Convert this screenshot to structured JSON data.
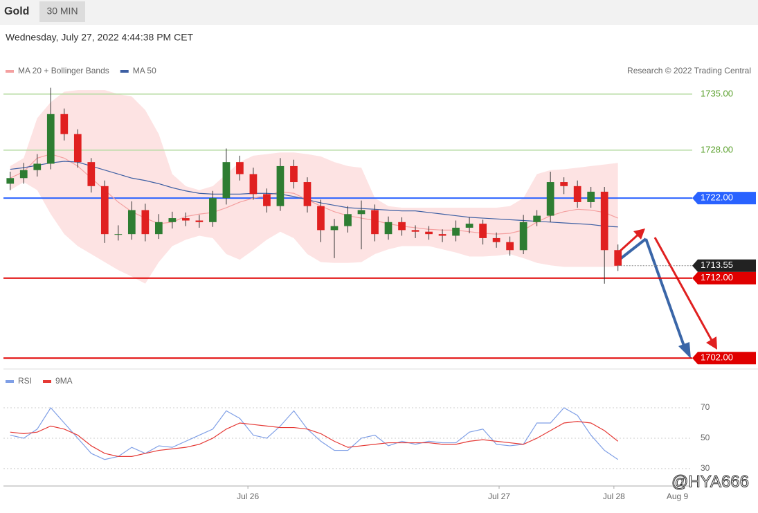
{
  "header": {
    "symbol": "Gold",
    "interval": "30 MIN",
    "date": "Wednesday, July 27, 2022 4:44:38 PM CET",
    "credit": "Research © 2022 Trading Central",
    "watermark": "@HYA666"
  },
  "chart_data": [
    {
      "type": "candlestick",
      "open": [
        1723.8,
        1724.5,
        1725.5,
        1726.3,
        1732.5,
        1730,
        1726.5,
        1723.5,
        1717.5,
        1717.5,
        1720.5,
        1717.5,
        1719,
        1719.5,
        1719.2,
        1719,
        1722,
        1726.5,
        1725,
        1722.5,
        1721,
        1726,
        1724,
        1721,
        1718,
        1718.5,
        1720,
        1720.5,
        1717.5,
        1719,
        1718,
        1717.8,
        1717.5,
        1717.3,
        1718.3,
        1718.8,
        1717,
        1716.5,
        1715.5,
        1719,
        1719.8,
        1724,
        1723.5,
        1721.5,
        1722.8,
        1715.5
      ],
      "high": [
        1725.3,
        1726.4,
        1727.5,
        1735.8,
        1733.2,
        1730.6,
        1727,
        1724.2,
        1718.6,
        1721.6,
        1721.3,
        1720,
        1720.3,
        1720.2,
        1719.9,
        1722.9,
        1728.2,
        1727.3,
        1725.8,
        1723.2,
        1727,
        1726.8,
        1724.6,
        1721.8,
        1719.4,
        1721,
        1721.7,
        1721.2,
        1719.7,
        1719.6,
        1718.6,
        1718.5,
        1718.1,
        1719.2,
        1719.6,
        1719.3,
        1717.7,
        1717.2,
        1719.9,
        1720.5,
        1725.3,
        1724.6,
        1724.2,
        1723.4,
        1723.4,
        1716.2
      ],
      "low": [
        1723,
        1723.8,
        1724.7,
        1725.6,
        1729.2,
        1725.8,
        1722.7,
        1716.4,
        1716.7,
        1716.8,
        1716.6,
        1716.9,
        1718.2,
        1718.5,
        1718.3,
        1718.4,
        1721.2,
        1724.2,
        1721.8,
        1720.2,
        1720.4,
        1723.2,
        1720.2,
        1716.5,
        1714.5,
        1717.7,
        1715.6,
        1716.6,
        1716.8,
        1717.3,
        1717,
        1716.8,
        1716.5,
        1716.6,
        1717.6,
        1716.2,
        1715.8,
        1714.8,
        1715,
        1718.5,
        1719,
        1722.5,
        1720.8,
        1720.8,
        1711.3,
        1712.9
      ],
      "close": [
        1724.5,
        1725.5,
        1726.3,
        1732.5,
        1730,
        1726.5,
        1723.5,
        1717.5,
        1717.5,
        1720.5,
        1717.5,
        1719,
        1719.5,
        1719.2,
        1719,
        1722,
        1726.5,
        1725,
        1722.5,
        1721,
        1726,
        1724,
        1721,
        1718,
        1718.5,
        1720,
        1720.5,
        1717.5,
        1719,
        1718,
        1717.8,
        1717.5,
        1717.3,
        1718.3,
        1718.8,
        1717,
        1716.5,
        1715.5,
        1719,
        1719.8,
        1724,
        1723.5,
        1721.5,
        1722.8,
        1715.5,
        1713.55
      ],
      "bull_color": "#2e7d32",
      "bear_color": "#e02020",
      "series": [
        {
          "name": "MA 20 + Bollinger Bands",
          "color": "#f4a0a0",
          "band_color": "#fde3e3",
          "values": [
            1724.5,
            1725.3,
            1727,
            1727.5,
            1727,
            1726,
            1724.5,
            1723,
            1721.5,
            1720.3,
            1719.5,
            1718.8,
            1719,
            1719.7,
            1720,
            1720.2,
            1720.8,
            1721.5,
            1722,
            1722.3,
            1722.8,
            1722.6,
            1721.8,
            1721,
            1720.3,
            1719.8,
            1719.5,
            1719.2,
            1718.8,
            1718.5,
            1718.3,
            1718.1,
            1718,
            1718,
            1717.8,
            1717.6,
            1717.5,
            1717.6,
            1718,
            1719,
            1719.8,
            1720.3,
            1720.6,
            1720.5,
            1720.2,
            1719.5
          ],
          "upper": [
            1726,
            1727,
            1732,
            1734,
            1735.3,
            1735.5,
            1735.5,
            1735.5,
            1735,
            1734.7,
            1733,
            1730,
            1725,
            1723.5,
            1723,
            1723.5,
            1725,
            1726.5,
            1727.3,
            1727.5,
            1727.7,
            1727.7,
            1727.5,
            1727.2,
            1726.5,
            1726,
            1725.8,
            1722,
            1721,
            1720.8,
            1720.8,
            1720.8,
            1720.8,
            1720.8,
            1720.8,
            1720.8,
            1720.8,
            1721,
            1722,
            1725,
            1725.5,
            1725.6,
            1725.8,
            1726,
            1726.2,
            1726.4
          ],
          "lower": [
            1723,
            1724,
            1723,
            1720,
            1717.5,
            1716,
            1715,
            1714,
            1713,
            1712.2,
            1711.3,
            1714,
            1716,
            1716.8,
            1717.3,
            1717,
            1715,
            1714.3,
            1715.5,
            1716.8,
            1717.8,
            1717,
            1715,
            1714,
            1713.9,
            1713.9,
            1714,
            1715,
            1715.6,
            1716,
            1716,
            1716,
            1715.6,
            1715.2,
            1714.7,
            1714.7,
            1714.8,
            1715,
            1714.5,
            1713.9,
            1713.6,
            1713.4,
            1713.4,
            1713.4,
            1713.4,
            1713.4
          ]
        },
        {
          "name": "MA 50",
          "color": "#3d5fa3",
          "values": [
            1725.6,
            1725.8,
            1726.1,
            1726.4,
            1726.6,
            1726.5,
            1726,
            1725.5,
            1725,
            1724.5,
            1724.2,
            1723.8,
            1723.3,
            1722.9,
            1722.6,
            1722.5,
            1722.5,
            1722.5,
            1722.6,
            1722.6,
            1722.5,
            1722.2,
            1721.8,
            1721.4,
            1721.1,
            1720.8,
            1720.7,
            1720.6,
            1720.5,
            1720.4,
            1720.4,
            1720.2,
            1720,
            1719.8,
            1719.6,
            1719.5,
            1719.4,
            1719.3,
            1719.2,
            1719.1,
            1719,
            1718.9,
            1718.8,
            1718.7,
            1718.5,
            1718.4
          ]
        }
      ],
      "levels": [
        {
          "value": 1735,
          "label": "1735.00",
          "color": "#b8dca4",
          "text_color": "#5aa02c",
          "tag": false
        },
        {
          "value": 1728,
          "label": "1728.00",
          "color": "#b8dca4",
          "text_color": "#5aa02c",
          "tag": false
        },
        {
          "value": 1722,
          "label": "1722.00",
          "color": "#2962ff",
          "text_color": "#ffffff",
          "tag": true
        },
        {
          "value": 1712,
          "label": "1712.00",
          "color": "#e00000",
          "text_color": "#ffffff",
          "tag": true
        },
        {
          "value": 1702,
          "label": "1702.00",
          "color": "#e00000",
          "text_color": "#ffffff",
          "tag": true
        }
      ],
      "last_price": {
        "value": 1713.55,
        "label": "1713.55",
        "color": "#222222"
      },
      "xlim": [
        -0.5,
        50.5
      ],
      "ylim": [
        1700.9,
        1743.3
      ]
    },
    {
      "type": "line",
      "series": [
        {
          "name": "RSI",
          "color": "#7f9fe6",
          "values": [
            52,
            50,
            56,
            70,
            60,
            50,
            40,
            36,
            38,
            44,
            40,
            45,
            44,
            48,
            52,
            56,
            68,
            63,
            52,
            50,
            58,
            68,
            56,
            48,
            42,
            42,
            50,
            52,
            45,
            48,
            46,
            48,
            47,
            47,
            54,
            56,
            46,
            45,
            46,
            60,
            60,
            70,
            65,
            52,
            42,
            36
          ]
        },
        {
          "name": "9MA",
          "color": "#e53935",
          "values": [
            54,
            53,
            54,
            58,
            56,
            52,
            45,
            40,
            38,
            38,
            40,
            42,
            43,
            44,
            46,
            50,
            56,
            60,
            59,
            58,
            57,
            57,
            56,
            53,
            48,
            44,
            45,
            46,
            47,
            47,
            47,
            47,
            46,
            46,
            48,
            49,
            48,
            47,
            46,
            50,
            55,
            60,
            61,
            60,
            55,
            48
          ]
        }
      ],
      "xlim": [
        -0.5,
        50.5
      ],
      "ylim": [
        19.5,
        92.3
      ],
      "yticks": [
        30,
        50,
        70
      ],
      "grid": true,
      "xticks": [
        {
          "value": 17.6,
          "label": "Jul 26"
        },
        {
          "value": 36.2,
          "label": "Jul 27"
        },
        {
          "value": 44.7,
          "label": "Jul 28"
        },
        {
          "value": 49.4,
          "label": "Aug 9"
        }
      ]
    }
  ]
}
